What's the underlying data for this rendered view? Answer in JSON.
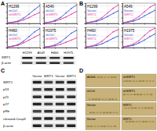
{
  "chart_data": [
    {
      "type": "line",
      "title": "H1299",
      "x": [
        0,
        1,
        2,
        3,
        4,
        5,
        6
      ],
      "series": [
        {
          "name": "shCtrl",
          "color": "#2b4fd8",
          "values": [
            0.1,
            0.2,
            0.4,
            0.9,
            1.6,
            2.4,
            3.1
          ]
        },
        {
          "name": "shSIRT1",
          "color": "#e0309a",
          "values": [
            0.1,
            0.15,
            0.3,
            0.6,
            1.0,
            1.5,
            1.9
          ]
        }
      ],
      "xlim": [
        0,
        6
      ],
      "ylim": [
        0,
        3.5
      ],
      "xticks": [
        0,
        2,
        4,
        6
      ],
      "yticks": [
        0,
        1,
        2,
        3
      ],
      "grid": true,
      "tick_labels": false
    },
    {
      "type": "line",
      "title": "A549",
      "x": [
        0,
        1,
        2,
        3,
        4,
        5,
        6
      ],
      "series": [
        {
          "name": "shCtrl",
          "color": "#2b4fd8",
          "values": [
            0.1,
            0.2,
            0.5,
            1.0,
            1.8,
            2.6,
            3.2
          ]
        },
        {
          "name": "shSIRT1",
          "color": "#e0309a",
          "values": [
            0.1,
            0.2,
            0.35,
            0.7,
            1.1,
            1.6,
            2.1
          ]
        }
      ],
      "xlim": [
        0,
        6
      ],
      "ylim": [
        0,
        3.5
      ],
      "xticks": [
        0,
        2,
        4,
        6
      ],
      "yticks": [
        0,
        1,
        2,
        3
      ],
      "grid": true,
      "tick_labels": false
    },
    {
      "type": "line",
      "title": "H460",
      "x": [
        0,
        1,
        2,
        3,
        4,
        5,
        6
      ],
      "series": [
        {
          "name": "shCtrl",
          "color": "#2b4fd8",
          "values": [
            0.1,
            0.25,
            0.5,
            1.1,
            1.9,
            2.7,
            3.3
          ]
        },
        {
          "name": "shSIRT1",
          "color": "#e0309a",
          "values": [
            0.1,
            0.2,
            0.4,
            0.8,
            1.3,
            1.8,
            2.3
          ]
        }
      ],
      "xlim": [
        0,
        6
      ],
      "ylim": [
        0,
        3.5
      ],
      "xticks": [
        0,
        2,
        4,
        6
      ],
      "yticks": [
        0,
        1,
        2,
        3
      ],
      "grid": true,
      "tick_labels": false
    },
    {
      "type": "line",
      "title": "H1975",
      "x": [
        0,
        1,
        2,
        3,
        4,
        5,
        6
      ],
      "series": [
        {
          "name": "shCtrl",
          "color": "#2b4fd8",
          "values": [
            0.1,
            0.2,
            0.45,
            0.95,
            1.7,
            2.5,
            3.0
          ]
        },
        {
          "name": "shSIRT1",
          "color": "#e0309a",
          "values": [
            0.1,
            0.15,
            0.3,
            0.55,
            0.9,
            1.3,
            1.7
          ]
        }
      ],
      "xlim": [
        0,
        6
      ],
      "ylim": [
        0,
        3.5
      ],
      "xticks": [
        0,
        2,
        4,
        6
      ],
      "yticks": [
        0,
        1,
        2,
        3
      ],
      "grid": true,
      "tick_labels": false
    },
    {
      "type": "line",
      "title": "H1299",
      "x": [
        0,
        1,
        2,
        3,
        4,
        5,
        6
      ],
      "series": [
        {
          "name": "Vector",
          "color": "#2b4fd8",
          "values": [
            0.1,
            0.2,
            0.35,
            0.7,
            1.2,
            1.7,
            2.2
          ]
        },
        {
          "name": "SIRT1",
          "color": "#e0309a",
          "values": [
            0.1,
            0.25,
            0.5,
            1.0,
            1.8,
            2.6,
            3.2
          ]
        }
      ],
      "xlim": [
        0,
        6
      ],
      "ylim": [
        0,
        3.5
      ],
      "xticks": [
        0,
        2,
        4,
        6
      ],
      "yticks": [
        0,
        1,
        2,
        3
      ],
      "grid": true,
      "tick_labels": false
    },
    {
      "type": "line",
      "title": "A549",
      "x": [
        0,
        1,
        2,
        3,
        4,
        5,
        6
      ],
      "series": [
        {
          "name": "Vector",
          "color": "#2b4fd8",
          "values": [
            0.1,
            0.2,
            0.4,
            0.75,
            1.3,
            1.8,
            2.3
          ]
        },
        {
          "name": "SIRT1",
          "color": "#e0309a",
          "values": [
            0.1,
            0.3,
            0.6,
            1.2,
            2.0,
            2.8,
            3.3
          ]
        }
      ],
      "xlim": [
        0,
        6
      ],
      "ylim": [
        0,
        3.5
      ],
      "xticks": [
        0,
        2,
        4,
        6
      ],
      "yticks": [
        0,
        1,
        2,
        3
      ],
      "grid": true,
      "tick_labels": false
    },
    {
      "type": "line",
      "title": "H460",
      "x": [
        0,
        1,
        2,
        3,
        4,
        5,
        6
      ],
      "series": [
        {
          "name": "Vector",
          "color": "#2b4fd8",
          "values": [
            0.1,
            0.2,
            0.35,
            0.65,
            1.1,
            1.6,
            2.0
          ]
        },
        {
          "name": "SIRT1",
          "color": "#e0309a",
          "values": [
            0.1,
            0.25,
            0.55,
            1.1,
            1.9,
            2.7,
            3.1
          ]
        }
      ],
      "xlim": [
        0,
        6
      ],
      "ylim": [
        0,
        3.5
      ],
      "xticks": [
        0,
        2,
        4,
        6
      ],
      "yticks": [
        0,
        1,
        2,
        3
      ],
      "grid": true,
      "tick_labels": false
    },
    {
      "type": "line",
      "title": "H1975",
      "x": [
        0,
        1,
        2,
        3,
        4,
        5,
        6
      ],
      "series": [
        {
          "name": "Vector",
          "color": "#2b4fd8",
          "values": [
            0.1,
            0.2,
            0.4,
            0.8,
            1.3,
            1.9,
            2.4
          ]
        },
        {
          "name": "SIRT1",
          "color": "#e0309a",
          "values": [
            0.1,
            0.3,
            0.6,
            1.2,
            2.1,
            2.9,
            3.4
          ]
        }
      ],
      "xlim": [
        0,
        6
      ],
      "ylim": [
        0,
        3.5
      ],
      "xticks": [
        0,
        2,
        4,
        6
      ],
      "yticks": [
        0,
        1,
        2,
        3
      ],
      "grid": true,
      "tick_labels": false
    }
  ],
  "figure": {
    "panel_labels": [
      "A",
      "B",
      "C",
      "D"
    ],
    "blot_a": {
      "lanes": [
        "H1299",
        "A549",
        "H460",
        "H1975"
      ],
      "rows": [
        "SIRT1",
        "β-actin"
      ]
    },
    "blot_c": {
      "lanes": [
        "Vector",
        "SIRT1",
        "Vector",
        "SIRT1"
      ],
      "rows": [
        "SIRT1",
        "p53",
        "p21",
        "p27",
        "pRb",
        "cleaved-Casp3",
        "β-actin"
      ]
    },
    "micrographs": [
      "shCtrl",
      "shSIRT1",
      "shCtrl",
      "shSIRT1",
      "Vector",
      "SIRT1",
      "Vector",
      "SIRT1"
    ]
  }
}
